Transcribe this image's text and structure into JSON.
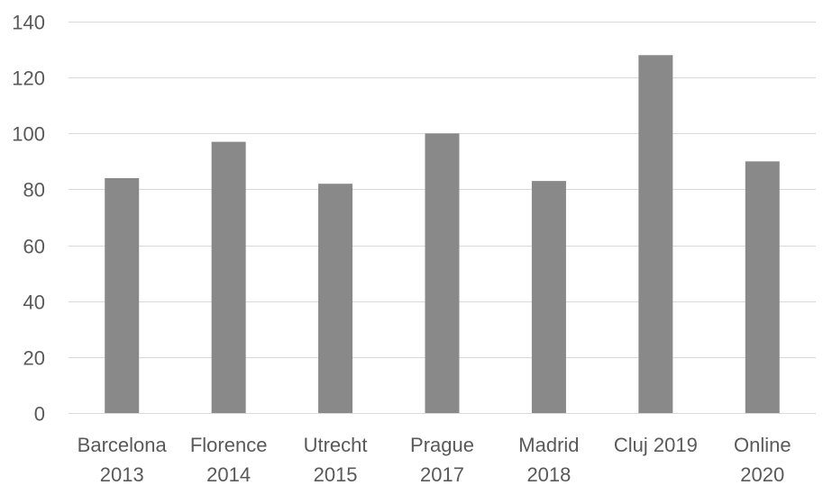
{
  "chart_data": {
    "type": "bar",
    "categories": [
      [
        "Barcelona",
        "2013"
      ],
      [
        "Florence",
        "2014"
      ],
      [
        "Utrecht",
        "2015"
      ],
      [
        "Prague",
        "2017"
      ],
      [
        "Madrid",
        "2018"
      ],
      [
        "Cluj 2019"
      ],
      [
        "Online",
        "2020"
      ]
    ],
    "values": [
      84,
      97,
      82,
      100,
      83,
      128,
      90
    ],
    "title": "",
    "xlabel": "",
    "ylabel": "",
    "ylim": [
      0,
      140
    ],
    "yticks": [
      0,
      20,
      40,
      60,
      80,
      100,
      120,
      140
    ],
    "grid": true,
    "legend": "none",
    "bar_color": "#898989",
    "grid_color": "#d9d9d9",
    "text_color": "#595959"
  }
}
